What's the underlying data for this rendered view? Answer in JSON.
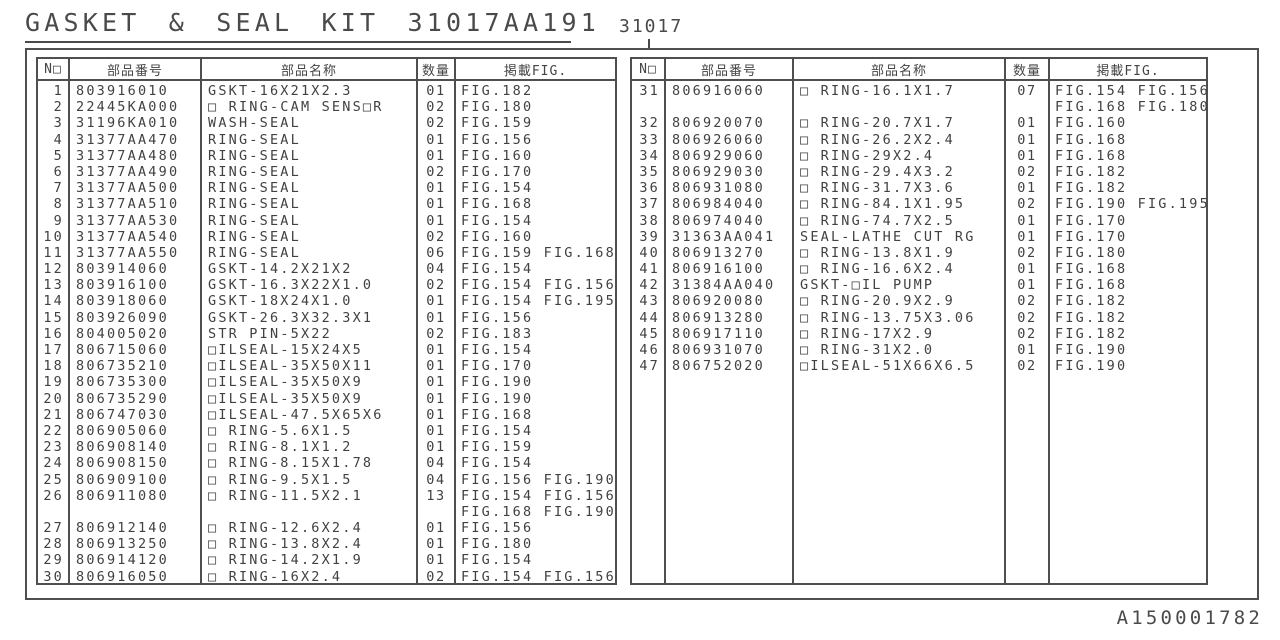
{
  "title": "GASKET & SEAL KIT 31017AA191",
  "callout": "31017",
  "doc_number": "A150001782",
  "colors": {
    "ink": "#414141",
    "line": "#4f4f4f"
  },
  "columns": [
    "N□",
    "部品番号",
    "部品名称",
    "数量",
    "掲載FIG."
  ],
  "tables": [
    {
      "rows": [
        {
          "no": "1",
          "part": "803916010",
          "name": "GSKT-16X21X2.3",
          "qty": "01",
          "figs": [
            "FIG.182"
          ]
        },
        {
          "no": "2",
          "part": "22445KA000",
          "name": "□ RING-CAM SENS□R",
          "qty": "02",
          "figs": [
            "FIG.180"
          ]
        },
        {
          "no": "3",
          "part": "31196KA010",
          "name": "WASH-SEAL",
          "qty": "02",
          "figs": [
            "FIG.159"
          ]
        },
        {
          "no": "4",
          "part": "31377AA470",
          "name": "RING-SEAL",
          "qty": "01",
          "figs": [
            "FIG.156"
          ]
        },
        {
          "no": "5",
          "part": "31377AA480",
          "name": "RING-SEAL",
          "qty": "01",
          "figs": [
            "FIG.160"
          ]
        },
        {
          "no": "6",
          "part": "31377AA490",
          "name": "RING-SEAL",
          "qty": "02",
          "figs": [
            "FIG.170"
          ]
        },
        {
          "no": "7",
          "part": "31377AA500",
          "name": "RING-SEAL",
          "qty": "01",
          "figs": [
            "FIG.154"
          ]
        },
        {
          "no": "8",
          "part": "31377AA510",
          "name": "RING-SEAL",
          "qty": "01",
          "figs": [
            "FIG.168"
          ]
        },
        {
          "no": "9",
          "part": "31377AA530",
          "name": "RING-SEAL",
          "qty": "01",
          "figs": [
            "FIG.154"
          ]
        },
        {
          "no": "10",
          "part": "31377AA540",
          "name": "RING-SEAL",
          "qty": "02",
          "figs": [
            "FIG.160"
          ]
        },
        {
          "no": "11",
          "part": "31377AA550",
          "name": "RING-SEAL",
          "qty": "06",
          "figs": [
            "FIG.159 FIG.168"
          ]
        },
        {
          "no": "12",
          "part": "803914060",
          "name": "GSKT-14.2X21X2",
          "qty": "04",
          "figs": [
            "FIG.154"
          ]
        },
        {
          "no": "13",
          "part": "803916100",
          "name": "GSKT-16.3X22X1.0",
          "qty": "02",
          "figs": [
            "FIG.154 FIG.156"
          ]
        },
        {
          "no": "14",
          "part": "803918060",
          "name": "GSKT-18X24X1.0",
          "qty": "01",
          "figs": [
            "FIG.154 FIG.195"
          ]
        },
        {
          "no": "15",
          "part": "803926090",
          "name": "GSKT-26.3X32.3X1",
          "qty": "01",
          "figs": [
            "FIG.156"
          ]
        },
        {
          "no": "16",
          "part": "804005020",
          "name": "STR PIN-5X22",
          "qty": "02",
          "figs": [
            "FIG.183"
          ]
        },
        {
          "no": "17",
          "part": "806715060",
          "name": "□ILSEAL-15X24X5",
          "qty": "01",
          "figs": [
            "FIG.154"
          ]
        },
        {
          "no": "18",
          "part": "806735210",
          "name": "□ILSEAL-35X50X11",
          "qty": "01",
          "figs": [
            "FIG.170"
          ]
        },
        {
          "no": "19",
          "part": "806735300",
          "name": "□ILSEAL-35X50X9",
          "qty": "01",
          "figs": [
            "FIG.190"
          ]
        },
        {
          "no": "20",
          "part": "806735290",
          "name": "□ILSEAL-35X50X9",
          "qty": "01",
          "figs": [
            "FIG.190"
          ]
        },
        {
          "no": "21",
          "part": "806747030",
          "name": "□ILSEAL-47.5X65X6",
          "qty": "01",
          "figs": [
            "FIG.168"
          ]
        },
        {
          "no": "22",
          "part": "806905060",
          "name": "□ RING-5.6X1.5",
          "qty": "01",
          "figs": [
            "FIG.154"
          ]
        },
        {
          "no": "23",
          "part": "806908140",
          "name": "□ RING-8.1X1.2",
          "qty": "01",
          "figs": [
            "FIG.159"
          ]
        },
        {
          "no": "24",
          "part": "806908150",
          "name": "□ RING-8.15X1.78",
          "qty": "04",
          "figs": [
            "FIG.154"
          ]
        },
        {
          "no": "25",
          "part": "806909100",
          "name": "□ RING-9.5X1.5",
          "qty": "04",
          "figs": [
            "FIG.156 FIG.190"
          ]
        },
        {
          "no": "26",
          "part": "806911080",
          "name": "□ RING-11.5X2.1",
          "qty": "13",
          "figs": [
            "FIG.154 FIG.156",
            "FIG.168 FIG.190"
          ]
        },
        {
          "no": "27",
          "part": "806912140",
          "name": "□ RING-12.6X2.4",
          "qty": "01",
          "figs": [
            "FIG.156"
          ]
        },
        {
          "no": "28",
          "part": "806913250",
          "name": "□ RING-13.8X2.4",
          "qty": "01",
          "figs": [
            "FIG.180"
          ]
        },
        {
          "no": "29",
          "part": "806914120",
          "name": "□ RING-14.2X1.9",
          "qty": "01",
          "figs": [
            "FIG.154"
          ]
        },
        {
          "no": "30",
          "part": "806916050",
          "name": "□ RING-16X2.4",
          "qty": "02",
          "figs": [
            "FIG.154 FIG.156"
          ]
        }
      ]
    },
    {
      "rows": [
        {
          "no": "31",
          "part": "806916060",
          "name": "□ RING-16.1X1.7",
          "qty": "07",
          "figs": [
            "FIG.154 FIG.156",
            "FIG.168 FIG.180"
          ]
        },
        {
          "no": "32",
          "part": "806920070",
          "name": "□ RING-20.7X1.7",
          "qty": "01",
          "figs": [
            "FIG.160"
          ]
        },
        {
          "no": "33",
          "part": "806926060",
          "name": "□ RING-26.2X2.4",
          "qty": "01",
          "figs": [
            "FIG.168"
          ]
        },
        {
          "no": "34",
          "part": "806929060",
          "name": "□ RING-29X2.4",
          "qty": "01",
          "figs": [
            "FIG.168"
          ]
        },
        {
          "no": "35",
          "part": "806929030",
          "name": "□ RING-29.4X3.2",
          "qty": "02",
          "figs": [
            "FIG.182"
          ]
        },
        {
          "no": "36",
          "part": "806931080",
          "name": "□ RING-31.7X3.6",
          "qty": "01",
          "figs": [
            "FIG.182"
          ]
        },
        {
          "no": "37",
          "part": "806984040",
          "name": "□ RING-84.1X1.95",
          "qty": "02",
          "figs": [
            "FIG.190 FIG.195"
          ]
        },
        {
          "no": "38",
          "part": "806974040",
          "name": "□ RING-74.7X2.5",
          "qty": "01",
          "figs": [
            "FIG.170"
          ]
        },
        {
          "no": "39",
          "part": "31363AA041",
          "name": "SEAL-LATHE CUT RG",
          "qty": "01",
          "figs": [
            "FIG.170"
          ]
        },
        {
          "no": "40",
          "part": "806913270",
          "name": "□ RING-13.8X1.9",
          "qty": "02",
          "figs": [
            "FIG.180"
          ]
        },
        {
          "no": "41",
          "part": "806916100",
          "name": "□ RING-16.6X2.4",
          "qty": "01",
          "figs": [
            "FIG.168"
          ]
        },
        {
          "no": "42",
          "part": "31384AA040",
          "name": "GSKT-□IL PUMP",
          "qty": "01",
          "figs": [
            "FIG.168"
          ]
        },
        {
          "no": "43",
          "part": "806920080",
          "name": "□ RING-20.9X2.9",
          "qty": "02",
          "figs": [
            "FIG.182"
          ]
        },
        {
          "no": "44",
          "part": "806913280",
          "name": "□ RING-13.75X3.06",
          "qty": "02",
          "figs": [
            "FIG.182"
          ]
        },
        {
          "no": "45",
          "part": "806917110",
          "name": "□ RING-17X2.9",
          "qty": "02",
          "figs": [
            "FIG.182"
          ]
        },
        {
          "no": "46",
          "part": "806931070",
          "name": "□ RING-31X2.0",
          "qty": "01",
          "figs": [
            "FIG.190"
          ]
        },
        {
          "no": "47",
          "part": "806752020",
          "name": "□ILSEAL-51X66X6.5",
          "qty": "02",
          "figs": [
            "FIG.190"
          ]
        }
      ]
    }
  ]
}
